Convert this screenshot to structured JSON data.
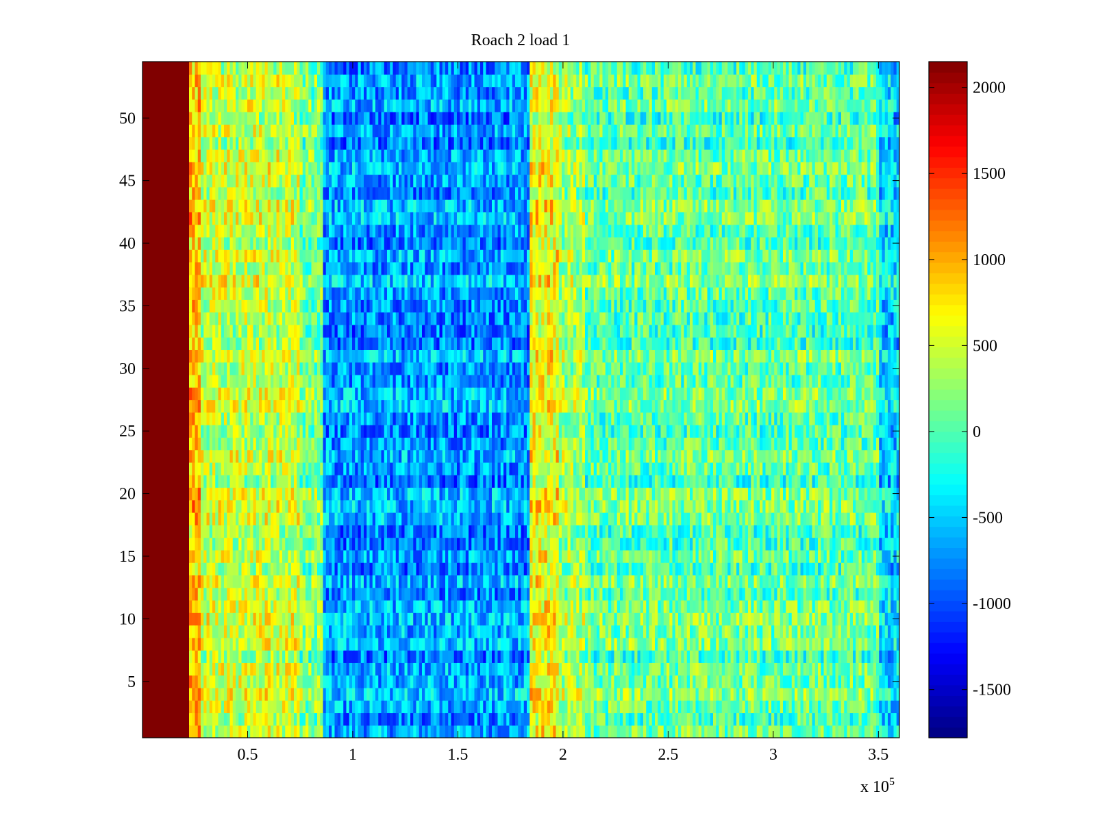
{
  "chart_data": {
    "type": "heatmap",
    "title": "Roach 2 load 1",
    "xlabel": "",
    "ylabel": "",
    "x_exponent_label": "x 10",
    "x_exponent": "5",
    "xlim": [
      0,
      360000
    ],
    "ylim": [
      0.5,
      54.5
    ],
    "x_ticks": [
      50000,
      100000,
      150000,
      200000,
      250000,
      300000,
      350000
    ],
    "x_tick_labels": [
      "0.5",
      "1",
      "1.5",
      "2",
      "2.5",
      "3",
      "3.5"
    ],
    "y_ticks": [
      5,
      10,
      15,
      20,
      25,
      30,
      35,
      40,
      45,
      50
    ],
    "y_tick_labels": [
      "5",
      "10",
      "15",
      "20",
      "25",
      "30",
      "35",
      "40",
      "45",
      "50"
    ],
    "colormap": "jet",
    "clim": [
      -1780,
      2150
    ],
    "colorbar_ticks": [
      -1500,
      -1000,
      -500,
      0,
      500,
      1000,
      1500,
      2000
    ],
    "colorbar_tick_labels": [
      "-1500",
      "-1000",
      "-500",
      "0",
      "500",
      "1000",
      "1500",
      "2000"
    ],
    "rows": 54,
    "region_means": [
      {
        "x_start": 0,
        "x_end": 22000,
        "value": 2150
      },
      {
        "x_start": 22000,
        "x_end": 27000,
        "value": 900
      },
      {
        "x_start": 27000,
        "x_end": 75000,
        "value": 450
      },
      {
        "x_start": 75000,
        "x_end": 86000,
        "value": 150
      },
      {
        "x_start": 86000,
        "x_end": 184000,
        "value": -700
      },
      {
        "x_start": 184000,
        "x_end": 198000,
        "value": 650
      },
      {
        "x_start": 198000,
        "x_end": 210000,
        "value": 300
      },
      {
        "x_start": 210000,
        "x_end": 350000,
        "value": 50
      },
      {
        "x_start": 350000,
        "x_end": 360000,
        "value": -450
      }
    ]
  }
}
